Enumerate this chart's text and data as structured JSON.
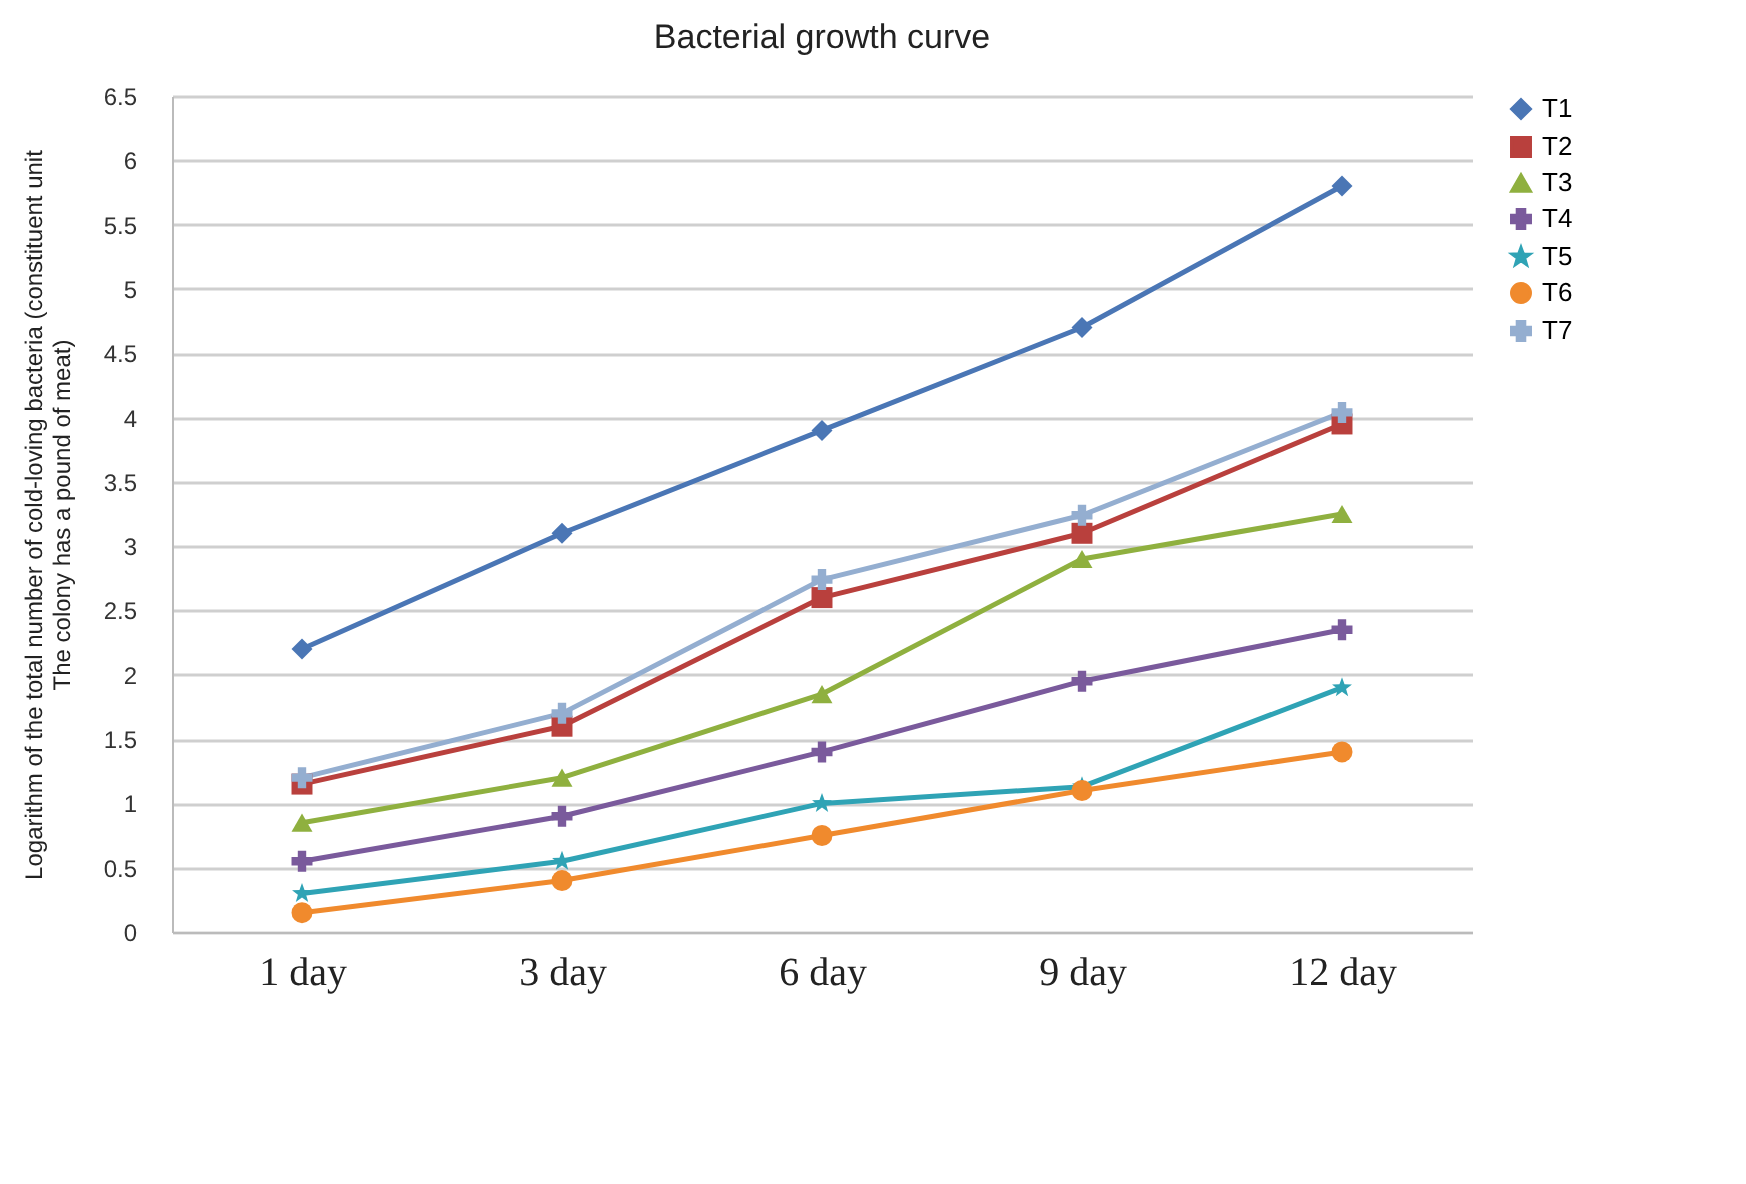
{
  "chart_data": {
    "type": "line",
    "title": "Bacterial growth curve",
    "ylabel": "Logarithm of the total number of cold-loving bacteria (constituent unit",
    "annotations": [
      "The colony has a pound of meat)"
    ],
    "categories": [
      "1 day",
      "3 day",
      "6 day",
      "9 day",
      "12 day"
    ],
    "series": [
      {
        "name": "T1",
        "color": "#4a76b5",
        "marker": "diamond",
        "values": [
          2.2,
          3.1,
          3.9,
          4.7,
          5.8
        ]
      },
      {
        "name": "T2",
        "color": "#b9403d",
        "marker": "square",
        "values": [
          1.15,
          1.6,
          2.6,
          3.1,
          3.95
        ]
      },
      {
        "name": "T3",
        "color": "#8fb03f",
        "marker": "triangle",
        "values": [
          0.85,
          1.2,
          1.85,
          2.9,
          3.25
        ]
      },
      {
        "name": "T4",
        "color": "#7a5a9c",
        "marker": "cross",
        "values": [
          0.55,
          0.9,
          1.4,
          1.95,
          2.35
        ]
      },
      {
        "name": "T5",
        "color": "#2fa3b5",
        "marker": "star",
        "values": [
          0.3,
          0.55,
          1.0,
          1.13,
          1.9
        ]
      },
      {
        "name": "T6",
        "color": "#f08a2d",
        "marker": "circle",
        "values": [
          0.15,
          0.4,
          0.75,
          1.1,
          1.4
        ]
      },
      {
        "name": "T7",
        "color": "#94aed0",
        "marker": "cross",
        "values": [
          1.2,
          1.7,
          2.74,
          3.24,
          4.04
        ]
      }
    ],
    "ylim": [
      0,
      6.5
    ],
    "yticks": [
      0,
      0.5,
      1,
      1.5,
      2,
      2.5,
      3,
      3.5,
      4,
      4.5,
      5,
      5.5,
      6,
      6.5
    ],
    "grid": "y",
    "legend": "right",
    "line_style": "solid"
  }
}
